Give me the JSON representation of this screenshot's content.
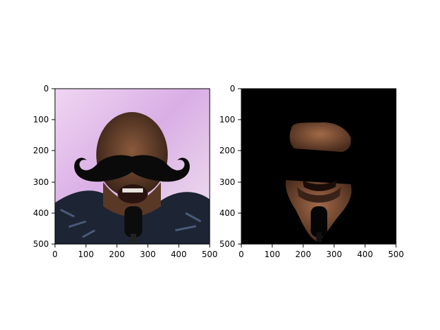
{
  "figure": {
    "panels": [
      {
        "name": "left",
        "image": "face-with-mustache",
        "xticks": [
          "0",
          "100",
          "200",
          "300",
          "400",
          "500"
        ],
        "yticks": [
          "0",
          "100",
          "200",
          "300",
          "400",
          "500"
        ]
      },
      {
        "name": "right",
        "image": "face-mask-black-background",
        "xticks": [
          "0",
          "100",
          "200",
          "300",
          "400",
          "500"
        ],
        "yticks": [
          "0",
          "100",
          "200",
          "300",
          "400",
          "500"
        ]
      }
    ]
  },
  "colors": {
    "background": "#ffffff",
    "axes": "#000000",
    "mask": "#000000",
    "mustache": "#0b0a0a",
    "skin": "#7a4a30",
    "stage": "#d9b3e6"
  }
}
